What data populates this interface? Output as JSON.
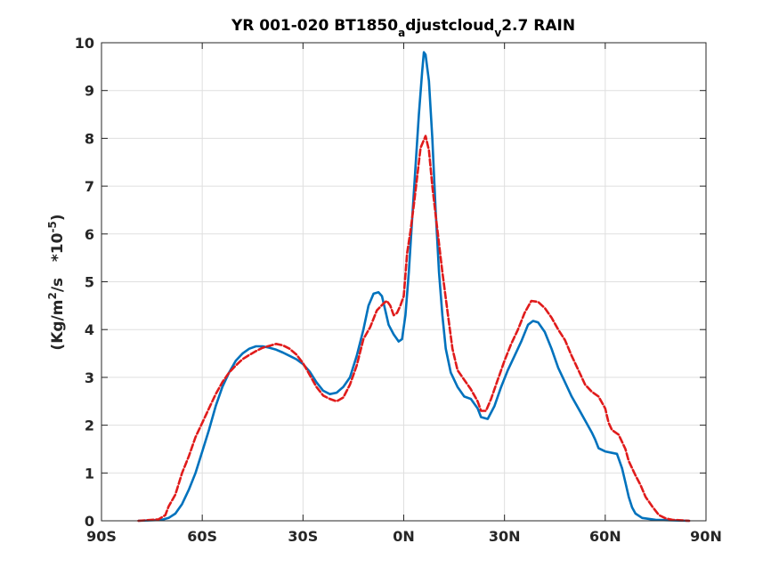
{
  "chart_data": {
    "type": "line",
    "title_parts": {
      "main": "YR 001-020 BT1850",
      "sub1": "a",
      "mid": "djustcloud",
      "sub2": "v",
      "end": "2.7 RAIN"
    },
    "ylabel_parts": {
      "base": "(Kg/m",
      "sup1": "2",
      "mid": "/s   *10",
      "sup2": "-5",
      "end": ")"
    },
    "xlim": [
      -90,
      90
    ],
    "ylim": [
      0,
      10
    ],
    "x_ticks": [
      {
        "value": -90,
        "label": "90S"
      },
      {
        "value": -60,
        "label": "60S"
      },
      {
        "value": -30,
        "label": "30S"
      },
      {
        "value": 0,
        "label": "0N"
      },
      {
        "value": 30,
        "label": "30N"
      },
      {
        "value": 60,
        "label": "60N"
      },
      {
        "value": 90,
        "label": "90N"
      }
    ],
    "y_ticks": [
      {
        "value": 0,
        "label": "0"
      },
      {
        "value": 1,
        "label": "1"
      },
      {
        "value": 2,
        "label": "2"
      },
      {
        "value": 3,
        "label": "3"
      },
      {
        "value": 4,
        "label": "4"
      },
      {
        "value": 5,
        "label": "5"
      },
      {
        "value": 6,
        "label": "6"
      },
      {
        "value": 7,
        "label": "7"
      },
      {
        "value": 8,
        "label": "8"
      },
      {
        "value": 9,
        "label": "9"
      },
      {
        "value": 10,
        "label": "10"
      }
    ],
    "grid": true,
    "series": [
      {
        "color": "#0072bd",
        "style": "solid",
        "points": [
          [
            -79,
            0
          ],
          [
            -72,
            0.02
          ],
          [
            -70,
            0.06
          ],
          [
            -68,
            0.15
          ],
          [
            -66,
            0.35
          ],
          [
            -64,
            0.65
          ],
          [
            -62,
            1.0
          ],
          [
            -60,
            1.45
          ],
          [
            -58,
            1.9
          ],
          [
            -56,
            2.4
          ],
          [
            -54,
            2.8
          ],
          [
            -52,
            3.1
          ],
          [
            -50,
            3.35
          ],
          [
            -48,
            3.5
          ],
          [
            -46,
            3.6
          ],
          [
            -44,
            3.65
          ],
          [
            -42,
            3.65
          ],
          [
            -40,
            3.62
          ],
          [
            -38,
            3.58
          ],
          [
            -36,
            3.52
          ],
          [
            -34,
            3.45
          ],
          [
            -32,
            3.38
          ],
          [
            -30,
            3.28
          ],
          [
            -28,
            3.12
          ],
          [
            -26,
            2.9
          ],
          [
            -24,
            2.72
          ],
          [
            -22,
            2.65
          ],
          [
            -20,
            2.68
          ],
          [
            -18,
            2.8
          ],
          [
            -16,
            3.0
          ],
          [
            -14,
            3.45
          ],
          [
            -12,
            4.0
          ],
          [
            -10.5,
            4.5
          ],
          [
            -9,
            4.75
          ],
          [
            -7.5,
            4.78
          ],
          [
            -6.5,
            4.7
          ],
          [
            -5.5,
            4.4
          ],
          [
            -4.5,
            4.1
          ],
          [
            -3,
            3.9
          ],
          [
            -1.5,
            3.75
          ],
          [
            -0.5,
            3.8
          ],
          [
            0.5,
            4.3
          ],
          [
            1.5,
            5.2
          ],
          [
            2.5,
            6.3
          ],
          [
            3.5,
            7.4
          ],
          [
            4.5,
            8.5
          ],
          [
            5.5,
            9.4
          ],
          [
            6,
            9.8
          ],
          [
            6.5,
            9.75
          ],
          [
            7.5,
            9.2
          ],
          [
            8.5,
            8.0
          ],
          [
            9.5,
            6.5
          ],
          [
            10.5,
            5.2
          ],
          [
            11.5,
            4.3
          ],
          [
            12.5,
            3.6
          ],
          [
            14,
            3.1
          ],
          [
            16,
            2.8
          ],
          [
            18,
            2.6
          ],
          [
            20,
            2.55
          ],
          [
            22,
            2.35
          ],
          [
            23,
            2.17
          ],
          [
            25,
            2.13
          ],
          [
            27,
            2.4
          ],
          [
            29,
            2.8
          ],
          [
            31,
            3.15
          ],
          [
            33,
            3.45
          ],
          [
            35,
            3.75
          ],
          [
            37,
            4.1
          ],
          [
            38.5,
            4.18
          ],
          [
            40,
            4.15
          ],
          [
            42,
            3.95
          ],
          [
            44,
            3.6
          ],
          [
            46,
            3.2
          ],
          [
            48,
            2.9
          ],
          [
            50,
            2.6
          ],
          [
            52,
            2.35
          ],
          [
            54,
            2.1
          ],
          [
            56,
            1.85
          ],
          [
            57,
            1.7
          ],
          [
            58,
            1.52
          ],
          [
            60,
            1.45
          ],
          [
            62,
            1.42
          ],
          [
            63.5,
            1.4
          ],
          [
            65,
            1.1
          ],
          [
            66,
            0.8
          ],
          [
            67,
            0.5
          ],
          [
            68,
            0.28
          ],
          [
            69,
            0.15
          ],
          [
            71,
            0.06
          ],
          [
            75,
            0.02
          ],
          [
            85,
            0
          ]
        ]
      },
      {
        "color": "#e01b1b",
        "style": "dashed",
        "points": [
          [
            -79,
            0
          ],
          [
            -73,
            0.03
          ],
          [
            -71,
            0.12
          ],
          [
            -70,
            0.3
          ],
          [
            -68,
            0.55
          ],
          [
            -66,
            1.0
          ],
          [
            -64,
            1.35
          ],
          [
            -62,
            1.75
          ],
          [
            -60,
            2.05
          ],
          [
            -58,
            2.35
          ],
          [
            -56,
            2.65
          ],
          [
            -54,
            2.9
          ],
          [
            -52,
            3.1
          ],
          [
            -50,
            3.25
          ],
          [
            -48,
            3.38
          ],
          [
            -46,
            3.47
          ],
          [
            -44,
            3.55
          ],
          [
            -42,
            3.62
          ],
          [
            -40,
            3.66
          ],
          [
            -38,
            3.7
          ],
          [
            -36,
            3.67
          ],
          [
            -34,
            3.6
          ],
          [
            -32,
            3.48
          ],
          [
            -30,
            3.3
          ],
          [
            -28,
            3.05
          ],
          [
            -26,
            2.8
          ],
          [
            -24,
            2.62
          ],
          [
            -22,
            2.55
          ],
          [
            -20,
            2.5
          ],
          [
            -18,
            2.58
          ],
          [
            -16,
            2.85
          ],
          [
            -14,
            3.25
          ],
          [
            -12,
            3.8
          ],
          [
            -10,
            4.05
          ],
          [
            -8,
            4.4
          ],
          [
            -6,
            4.55
          ],
          [
            -5,
            4.6
          ],
          [
            -4,
            4.5
          ],
          [
            -3,
            4.3
          ],
          [
            -2,
            4.35
          ],
          [
            -1,
            4.5
          ],
          [
            0,
            4.7
          ],
          [
            1,
            5.6
          ],
          [
            2,
            6.05
          ],
          [
            3,
            6.6
          ],
          [
            4,
            7.2
          ],
          [
            5,
            7.8
          ],
          [
            6.5,
            8.05
          ],
          [
            7.5,
            7.75
          ],
          [
            8.5,
            7.0
          ],
          [
            9.5,
            6.4
          ],
          [
            10.5,
            5.8
          ],
          [
            11.5,
            5.2
          ],
          [
            13,
            4.4
          ],
          [
            14.5,
            3.6
          ],
          [
            16,
            3.15
          ],
          [
            18,
            2.95
          ],
          [
            20,
            2.75
          ],
          [
            22,
            2.5
          ],
          [
            23,
            2.3
          ],
          [
            24.5,
            2.3
          ],
          [
            26,
            2.55
          ],
          [
            28,
            2.95
          ],
          [
            30,
            3.35
          ],
          [
            32,
            3.7
          ],
          [
            34,
            4.0
          ],
          [
            36,
            4.35
          ],
          [
            38,
            4.6
          ],
          [
            40,
            4.58
          ],
          [
            42,
            4.45
          ],
          [
            44,
            4.25
          ],
          [
            46,
            4.0
          ],
          [
            48,
            3.78
          ],
          [
            50,
            3.45
          ],
          [
            52,
            3.15
          ],
          [
            54,
            2.85
          ],
          [
            56,
            2.7
          ],
          [
            58,
            2.6
          ],
          [
            60,
            2.35
          ],
          [
            61,
            2.05
          ],
          [
            62,
            1.9
          ],
          [
            64,
            1.8
          ],
          [
            66,
            1.5
          ],
          [
            67,
            1.25
          ],
          [
            69,
            0.95
          ],
          [
            70.5,
            0.75
          ],
          [
            72,
            0.5
          ],
          [
            74,
            0.3
          ],
          [
            76,
            0.12
          ],
          [
            78,
            0.05
          ],
          [
            80,
            0.02
          ],
          [
            85,
            0
          ]
        ]
      }
    ]
  }
}
